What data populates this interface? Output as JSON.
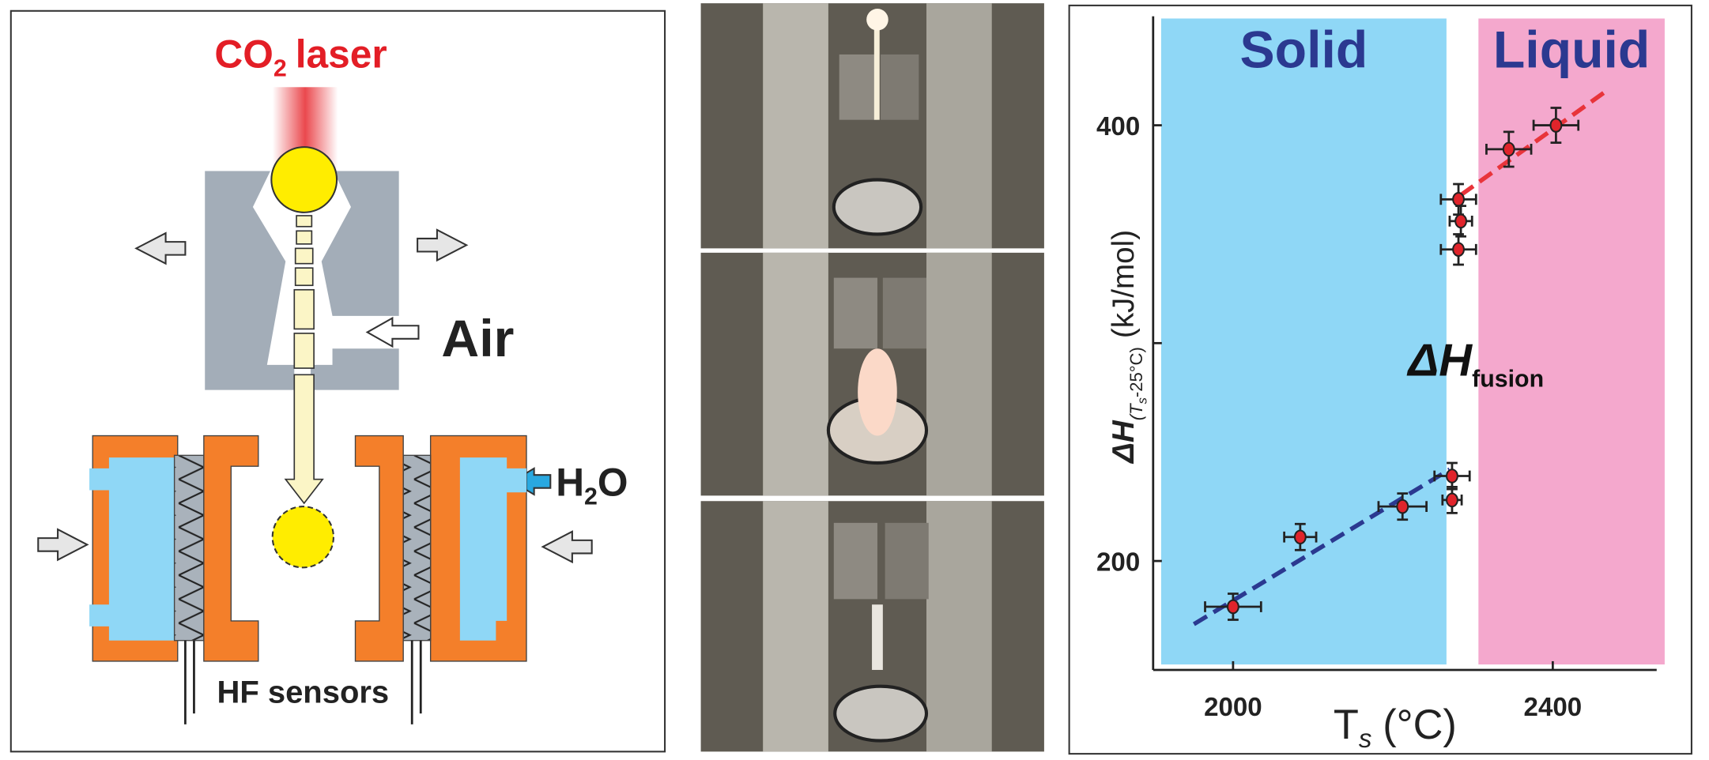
{
  "diagram": {
    "laser_label": [
      "CO",
      "2",
      "laser"
    ],
    "air_label": "Air",
    "water_label": [
      "H",
      "2",
      "O"
    ],
    "sensor_label": "HF sensors"
  },
  "chart_data": {
    "type": "scatter",
    "x_label": [
      "T",
      "s",
      "(°C)"
    ],
    "y_label": [
      "ΔH",
      "(T",
      "s",
      "-25°C)",
      "(kJ/mol)"
    ],
    "annotation": [
      "ΔH",
      "fusion"
    ],
    "xlim": [
      1900,
      2530
    ],
    "ylim": [
      150,
      450
    ],
    "xticks": [
      2000,
      2400
    ],
    "yticks": [
      200,
      400
    ],
    "yticks_minor": [
      300
    ],
    "regions": [
      {
        "label": "Solid",
        "color": "#8fd7f6",
        "label_color": "#2b3990",
        "x": [
          1910,
          2267
        ]
      },
      {
        "label": "Liquid",
        "color": "#f4a8cd",
        "label_color": "#2b3990",
        "x": [
          2307,
          2540
        ]
      }
    ],
    "series": [
      {
        "color": "#e0242b",
        "x": [
          2000,
          2084,
          2212,
          2274,
          2274,
          2282,
          2285,
          2282,
          2345,
          2404
        ],
        "values": [
          179,
          211,
          225,
          239,
          228,
          366,
          356,
          343,
          389,
          400
        ],
        "xerr": [
          35,
          20,
          30,
          22,
          12,
          22,
          14,
          22,
          28,
          28
        ],
        "yerr": [
          6,
          6,
          6,
          6,
          6,
          7,
          7,
          7,
          8,
          8
        ]
      }
    ],
    "fits": [
      {
        "color": "#2b3990",
        "x": [
          1951,
          2271
        ],
        "values": [
          171,
          242
        ]
      },
      {
        "color": "#e8343a",
        "x": [
          2285,
          2468
        ],
        "values": [
          368,
          416
        ]
      }
    ]
  }
}
